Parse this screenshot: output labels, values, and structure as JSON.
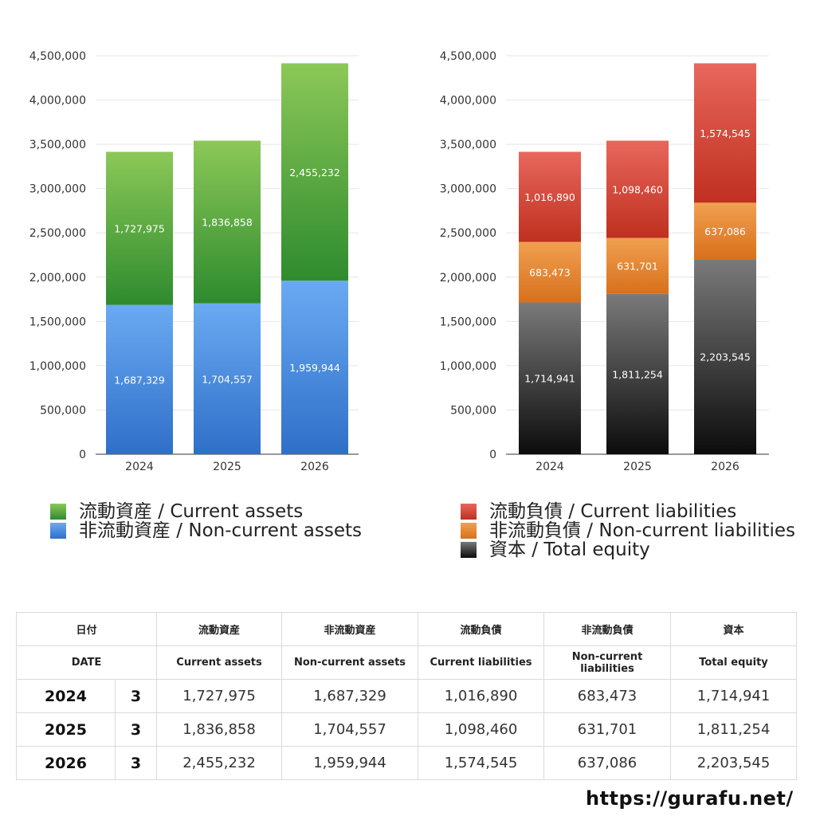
{
  "chart_data": [
    {
      "type": "bar",
      "stacked": true,
      "categories": [
        "2024",
        "2025",
        "2026"
      ],
      "ylim": [
        0,
        4500000
      ],
      "yticks": [
        "0",
        "500,000",
        "1,000,000",
        "1,500,000",
        "2,000,000",
        "2,500,000",
        "3,000,000",
        "3,500,000",
        "4,000,000",
        "4,500,000"
      ],
      "grid": true,
      "legend_position": "bottom",
      "series": [
        {
          "name": "非流動資産 / Non-current assets",
          "values": [
            1687329,
            1704557,
            1959944
          ],
          "labels": [
            "1,687,329",
            "1,704,557",
            "1,959,944"
          ],
          "color_top": "#6aaaf2",
          "color_bottom": "#2f6fc8"
        },
        {
          "name": "流動資産 / Current assets",
          "values": [
            1727975,
            1836858,
            2455232
          ],
          "labels": [
            "1,727,975",
            "1,836,858",
            "2,455,232"
          ],
          "color_top": "#8cc858",
          "color_bottom": "#2e8b2e"
        }
      ]
    },
    {
      "type": "bar",
      "stacked": true,
      "categories": [
        "2024",
        "2025",
        "2026"
      ],
      "ylim": [
        0,
        4500000
      ],
      "yticks": [
        "0",
        "500,000",
        "1,000,000",
        "1,500,000",
        "2,000,000",
        "2,500,000",
        "3,000,000",
        "3,500,000",
        "4,000,000",
        "4,500,000"
      ],
      "grid": true,
      "legend_position": "bottom",
      "series": [
        {
          "name": "資本 / Total equity",
          "values": [
            1714941,
            1811254,
            2203545
          ],
          "labels": [
            "1,714,941",
            "1,811,254",
            "2,203,545"
          ],
          "color_top": "#7a7a7a",
          "color_bottom": "#0c0c0c"
        },
        {
          "name": "非流動負債 / Non-current liabilities",
          "values": [
            683473,
            631701,
            637086
          ],
          "labels": [
            "683,473",
            "631,701",
            "637,086"
          ],
          "color_top": "#f0a050",
          "color_bottom": "#d8701c"
        },
        {
          "name": "流動負債 / Current liabilities",
          "values": [
            1016890,
            1098460,
            1574545
          ],
          "labels": [
            "1,016,890",
            "1,098,460",
            "1,574,545"
          ],
          "color_top": "#e8675c",
          "color_bottom": "#bf3020"
        }
      ]
    }
  ],
  "legend_left": [
    "流動資産 / Current assets",
    "非流動資産 / Non-current assets"
  ],
  "legend_right": [
    "流動負債 / Current liabilities",
    "非流動負債 / Non-current liabilities",
    "資本 / Total equity"
  ],
  "table": {
    "header_jp": [
      "日付",
      "流動資産",
      "非流動資産",
      "流動負債",
      "非流動負債",
      "資本"
    ],
    "header_en": [
      "DATE",
      "Current assets",
      "Non-current assets",
      "Current liabilities",
      "Non-current liabilities",
      "Total equity"
    ],
    "rows": [
      {
        "year": "2024",
        "count": "3",
        "values": [
          "1,727,975",
          "1,687,329",
          "1,016,890",
          "683,473",
          "1,714,941"
        ]
      },
      {
        "year": "2025",
        "count": "3",
        "values": [
          "1,836,858",
          "1,704,557",
          "1,098,460",
          "631,701",
          "1,811,254"
        ]
      },
      {
        "year": "2026",
        "count": "3",
        "values": [
          "2,455,232",
          "1,959,944",
          "1,574,545",
          "637,086",
          "2,203,545"
        ]
      }
    ]
  },
  "site_url": "https://gurafu.net/"
}
